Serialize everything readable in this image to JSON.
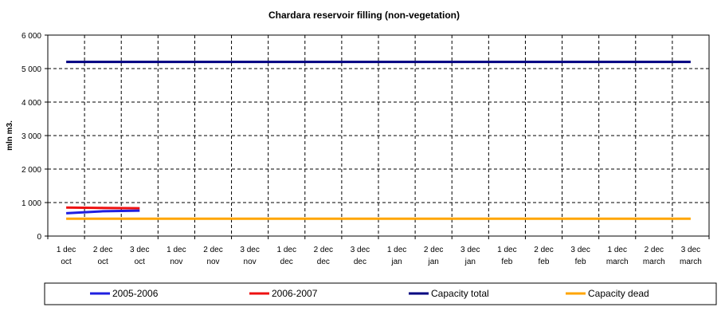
{
  "chart_data": {
    "type": "line",
    "title": "Chardara reservoir filling  (non-vegetation)",
    "xlabel": "",
    "ylabel": "mln m3.",
    "ylim": [
      0,
      6000
    ],
    "yticks": [
      0,
      1000,
      2000,
      3000,
      4000,
      5000,
      6000
    ],
    "ytick_labels": [
      "0",
      "1 000",
      "2 000",
      "3 000",
      "4 000",
      "5 000",
      "6 000"
    ],
    "categories": [
      [
        "1 dec",
        "oct"
      ],
      [
        "2 dec",
        "oct"
      ],
      [
        "3 dec",
        "oct"
      ],
      [
        "1 dec",
        "nov"
      ],
      [
        "2 dec",
        "nov"
      ],
      [
        "3 dec",
        "nov"
      ],
      [
        "1 dec",
        "dec"
      ],
      [
        "2 dec",
        "dec"
      ],
      [
        "3 dec",
        "dec"
      ],
      [
        "1 dec",
        "jan"
      ],
      [
        "2 dec",
        "jan"
      ],
      [
        "3 dec",
        "jan"
      ],
      [
        "1 dec",
        "feb"
      ],
      [
        "2 dec",
        "feb"
      ],
      [
        "3 dec",
        "feb"
      ],
      [
        "1 dec",
        "march"
      ],
      [
        "2 dec",
        "march"
      ],
      [
        "3 dec",
        "march"
      ]
    ],
    "grid": true,
    "legend_position": "bottom",
    "series": [
      {
        "name": "2005-2006",
        "color": "#1f1fe0",
        "values": [
          680,
          740,
          760,
          null,
          null,
          null,
          null,
          null,
          null,
          null,
          null,
          null,
          null,
          null,
          null,
          null,
          null,
          null
        ]
      },
      {
        "name": "2006-2007",
        "color": "#ee1111",
        "values": [
          850,
          840,
          830,
          null,
          null,
          null,
          null,
          null,
          null,
          null,
          null,
          null,
          null,
          null,
          null,
          null,
          null,
          null
        ]
      },
      {
        "name": "Capacity total",
        "color": "#000080",
        "values": [
          5200,
          5200,
          5200,
          5200,
          5200,
          5200,
          5200,
          5200,
          5200,
          5200,
          5200,
          5200,
          5200,
          5200,
          5200,
          5200,
          5200,
          5200
        ]
      },
      {
        "name": "Capacity dead",
        "color": "#ffa500",
        "values": [
          520,
          520,
          520,
          520,
          520,
          520,
          520,
          520,
          520,
          520,
          520,
          520,
          520,
          520,
          520,
          520,
          520,
          520
        ]
      }
    ]
  }
}
